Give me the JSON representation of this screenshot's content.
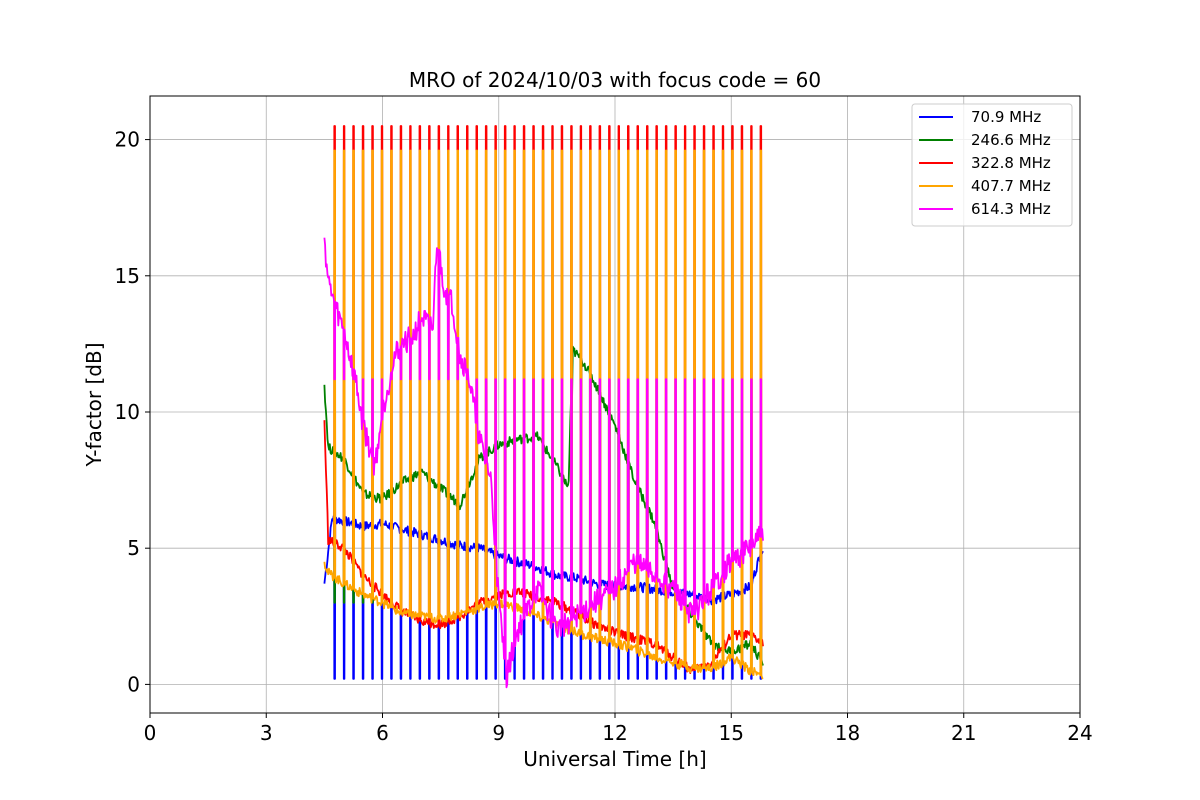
{
  "chart_data": {
    "type": "line",
    "title": "MRO of 2024/10/03 with focus code = 60",
    "xlabel": "Universal Time [h]",
    "ylabel": "Y-factor [dB]",
    "xlim": [
      0,
      24
    ],
    "ylim": [
      -1.05,
      21.6
    ],
    "xticks": [
      0,
      3,
      6,
      9,
      12,
      15,
      18,
      21,
      24
    ],
    "yticks": [
      0,
      5,
      10,
      15,
      20
    ],
    "grid": true,
    "legend": "top-right",
    "calibration_pulses": {
      "start_h": 4.75,
      "end_h": 15.75,
      "count": 46
    },
    "series": [
      {
        "name": " 70.9 MHz",
        "color": "#0000ff",
        "x": [
          4.5,
          4.7,
          5.0,
          5.5,
          6.0,
          6.5,
          7.0,
          7.5,
          8.0,
          8.5,
          9.0,
          9.5,
          10.0,
          10.5,
          11.0,
          11.5,
          12.0,
          12.5,
          13.0,
          13.5,
          14.0,
          14.5,
          15.0,
          15.5,
          15.8
        ],
        "y": [
          3.7,
          6.1,
          6.0,
          5.8,
          5.9,
          5.7,
          5.5,
          5.3,
          5.1,
          5.0,
          4.7,
          4.5,
          4.3,
          4.0,
          3.9,
          3.7,
          3.6,
          3.6,
          3.5,
          3.4,
          3.3,
          3.1,
          3.3,
          3.6,
          5.0
        ],
        "pulse_high": 0.2
      },
      {
        "name": "246.6 MHz",
        "color": "#008000",
        "x": [
          4.5,
          4.6,
          5.0,
          5.5,
          6.0,
          6.5,
          7.0,
          7.5,
          8.0,
          8.5,
          9.0,
          9.5,
          10.0,
          10.5,
          10.8,
          10.9,
          11.2,
          11.5,
          12.0,
          12.5,
          13.0,
          13.5,
          14.0,
          14.5,
          15.0,
          15.5,
          15.8
        ],
        "y": [
          11.0,
          8.7,
          8.3,
          7.0,
          6.8,
          7.4,
          7.8,
          7.2,
          6.6,
          8.3,
          8.8,
          9.0,
          9.1,
          8.0,
          7.2,
          12.3,
          11.8,
          11.0,
          9.5,
          7.5,
          6.0,
          3.5,
          2.5,
          1.5,
          1.2,
          1.5,
          0.8
        ],
        "pulse_high": 3.0
      },
      {
        "name": "322.8 MHz",
        "color": "#ff0000",
        "x": [
          4.5,
          4.6,
          5.0,
          5.5,
          6.0,
          6.5,
          7.0,
          7.5,
          8.0,
          8.5,
          9.0,
          9.5,
          10.0,
          10.5,
          11.0,
          11.5,
          12.0,
          12.5,
          13.0,
          13.5,
          14.0,
          14.5,
          15.0,
          15.5,
          15.8
        ],
        "y": [
          9.7,
          5.3,
          5.0,
          4.0,
          3.3,
          2.7,
          2.3,
          2.2,
          2.5,
          3.0,
          3.3,
          3.4,
          3.2,
          3.0,
          2.6,
          2.2,
          1.9,
          1.7,
          1.5,
          1.0,
          0.5,
          0.8,
          1.8,
          1.8,
          1.5
        ],
        "pulse_high": 20.5
      },
      {
        "name": "407.7 MHz",
        "color": "#ffa500",
        "x": [
          4.5,
          4.6,
          5.0,
          5.5,
          6.0,
          6.5,
          7.0,
          7.5,
          8.0,
          8.5,
          9.0,
          9.5,
          10.0,
          10.5,
          11.0,
          11.5,
          12.0,
          12.5,
          13.0,
          13.5,
          14.0,
          14.5,
          15.0,
          15.5,
          15.8
        ],
        "y": [
          4.5,
          4.1,
          3.7,
          3.3,
          3.0,
          2.6,
          2.5,
          2.4,
          2.6,
          2.8,
          3.0,
          2.8,
          2.5,
          2.2,
          1.9,
          1.7,
          1.5,
          1.3,
          1.0,
          0.8,
          0.6,
          0.6,
          1.0,
          0.5,
          0.3
        ],
        "pulse_high": 19.6
      },
      {
        "name": "614.3 MHz",
        "color": "#ff00ff",
        "x": [
          4.5,
          4.6,
          4.8,
          5.0,
          5.3,
          5.5,
          5.8,
          6.0,
          6.3,
          6.5,
          6.8,
          7.0,
          7.3,
          7.4,
          7.6,
          7.8,
          8.0,
          8.2,
          8.5,
          8.8,
          9.0,
          9.2,
          9.5,
          10.0,
          10.5,
          11.0,
          11.5,
          12.0,
          12.5,
          13.0,
          13.5,
          14.0,
          14.5,
          15.0,
          15.5,
          15.8
        ],
        "y": [
          16.4,
          14.8,
          13.8,
          13.0,
          11.2,
          9.5,
          8.0,
          10.0,
          12.0,
          12.5,
          12.8,
          13.5,
          13.0,
          16.3,
          14.5,
          14.0,
          12.0,
          11.5,
          9.0,
          7.5,
          3.0,
          0.3,
          2.0,
          3.5,
          2.0,
          2.5,
          3.0,
          3.5,
          4.5,
          4.0,
          3.5,
          2.5,
          3.5,
          4.5,
          5.0,
          5.5
        ],
        "pulse_high": 11.2
      }
    ]
  }
}
